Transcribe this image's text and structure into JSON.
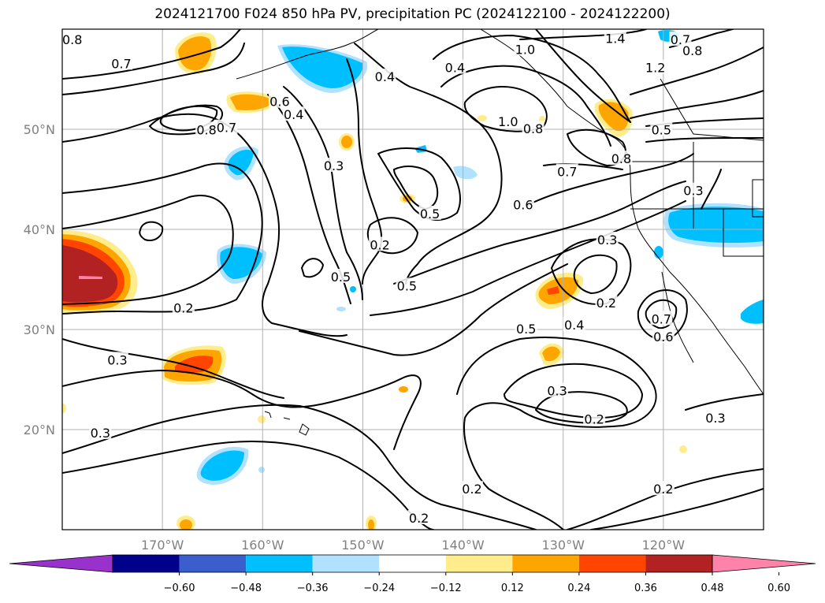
{
  "title": "2024121700 F024 850 hPa PV, precipitation PC (2024122100 - 2024122200)",
  "map": {
    "lon_range": [
      -180,
      -110
    ],
    "lat_range": [
      10,
      60
    ],
    "lon_ticks": [
      {
        "lon": -170,
        "label": "170°W"
      },
      {
        "lon": -160,
        "label": "160°W"
      },
      {
        "lon": -150,
        "label": "150°W"
      },
      {
        "lon": -140,
        "label": "140°W"
      },
      {
        "lon": -130,
        "label": "130°W"
      },
      {
        "lon": -120,
        "label": "120°W"
      }
    ],
    "lat_ticks": [
      {
        "lat": 20,
        "label": "20°N"
      },
      {
        "lat": 30,
        "label": "30°N"
      },
      {
        "lat": 40,
        "label": "40°N"
      },
      {
        "lat": 50,
        "label": "50°N"
      }
    ],
    "gridlines": true
  },
  "colorbar": {
    "colors": [
      "#9932cc",
      "#00008b",
      "#3a5fcd",
      "#00bfff",
      "#b0e2ff",
      "#ffffff",
      "#ffec8b",
      "#ffa500",
      "#ff4500",
      "#b22222",
      "#ff82ab"
    ],
    "ticks": [
      "−0.60",
      "−0.48",
      "−0.36",
      "−0.24",
      "−0.12",
      "0.12",
      "0.24",
      "0.36",
      "0.48",
      "0.60"
    ]
  },
  "contour_labels": [
    {
      "text": "0.8",
      "lon": -179.0,
      "lat": 58.9
    },
    {
      "text": "0.7",
      "lon": -174.1,
      "lat": 56.5
    },
    {
      "text": "0.6",
      "lon": -158.3,
      "lat": 52.7
    },
    {
      "text": "0.8",
      "lon": -165.6,
      "lat": 49.9
    },
    {
      "text": "0.7",
      "lon": -163.6,
      "lat": 50.1
    },
    {
      "text": "0.4",
      "lon": -156.9,
      "lat": 51.4
    },
    {
      "text": "0.4",
      "lon": -147.8,
      "lat": 55.2
    },
    {
      "text": "0.4",
      "lon": -140.8,
      "lat": 56.1
    },
    {
      "text": "1.0",
      "lon": -133.8,
      "lat": 57.9
    },
    {
      "text": "1.4",
      "lon": -124.8,
      "lat": 59.0
    },
    {
      "text": "1.2",
      "lon": -120.8,
      "lat": 56.1
    },
    {
      "text": "0.7",
      "lon": -118.3,
      "lat": 58.9
    },
    {
      "text": "0.8",
      "lon": -117.1,
      "lat": 57.8
    },
    {
      "text": "1.0",
      "lon": -135.5,
      "lat": 50.7
    },
    {
      "text": "0.8",
      "lon": -133.0,
      "lat": 50.0
    },
    {
      "text": "0.5",
      "lon": -120.2,
      "lat": 49.9
    },
    {
      "text": "0.8",
      "lon": -124.2,
      "lat": 47.0
    },
    {
      "text": "0.7",
      "lon": -129.6,
      "lat": 45.7
    },
    {
      "text": "0.3",
      "lon": -152.9,
      "lat": 46.3
    },
    {
      "text": "0.3",
      "lon": -117.0,
      "lat": 43.8
    },
    {
      "text": "0.5",
      "lon": -143.3,
      "lat": 41.5
    },
    {
      "text": "0.6",
      "lon": -134.0,
      "lat": 42.4
    },
    {
      "text": "0.2",
      "lon": -148.3,
      "lat": 38.4
    },
    {
      "text": "0.3",
      "lon": -125.6,
      "lat": 38.9
    },
    {
      "text": "0.5",
      "lon": -152.2,
      "lat": 35.2
    },
    {
      "text": "0.5",
      "lon": -145.6,
      "lat": 34.3
    },
    {
      "text": "0.2",
      "lon": -125.7,
      "lat": 32.6
    },
    {
      "text": "0.2",
      "lon": -167.9,
      "lat": 32.1
    },
    {
      "text": "0.7",
      "lon": -120.2,
      "lat": 31.0
    },
    {
      "text": "0.4",
      "lon": -128.9,
      "lat": 30.4
    },
    {
      "text": "0.5",
      "lon": -133.7,
      "lat": 30.0
    },
    {
      "text": "0.6",
      "lon": -120.0,
      "lat": 29.2
    },
    {
      "text": "0.3",
      "lon": -174.5,
      "lat": 26.9
    },
    {
      "text": "0.3",
      "lon": -130.6,
      "lat": 23.8
    },
    {
      "text": "0.2",
      "lon": -126.9,
      "lat": 21.0
    },
    {
      "text": "0.3",
      "lon": -114.8,
      "lat": 21.1
    },
    {
      "text": "0.3",
      "lon": -176.2,
      "lat": 19.6
    },
    {
      "text": "0.2",
      "lon": -139.1,
      "lat": 14.0
    },
    {
      "text": "0.2",
      "lon": -120.0,
      "lat": 14.0
    },
    {
      "text": "0.2",
      "lon": -144.4,
      "lat": 11.1
    }
  ]
}
